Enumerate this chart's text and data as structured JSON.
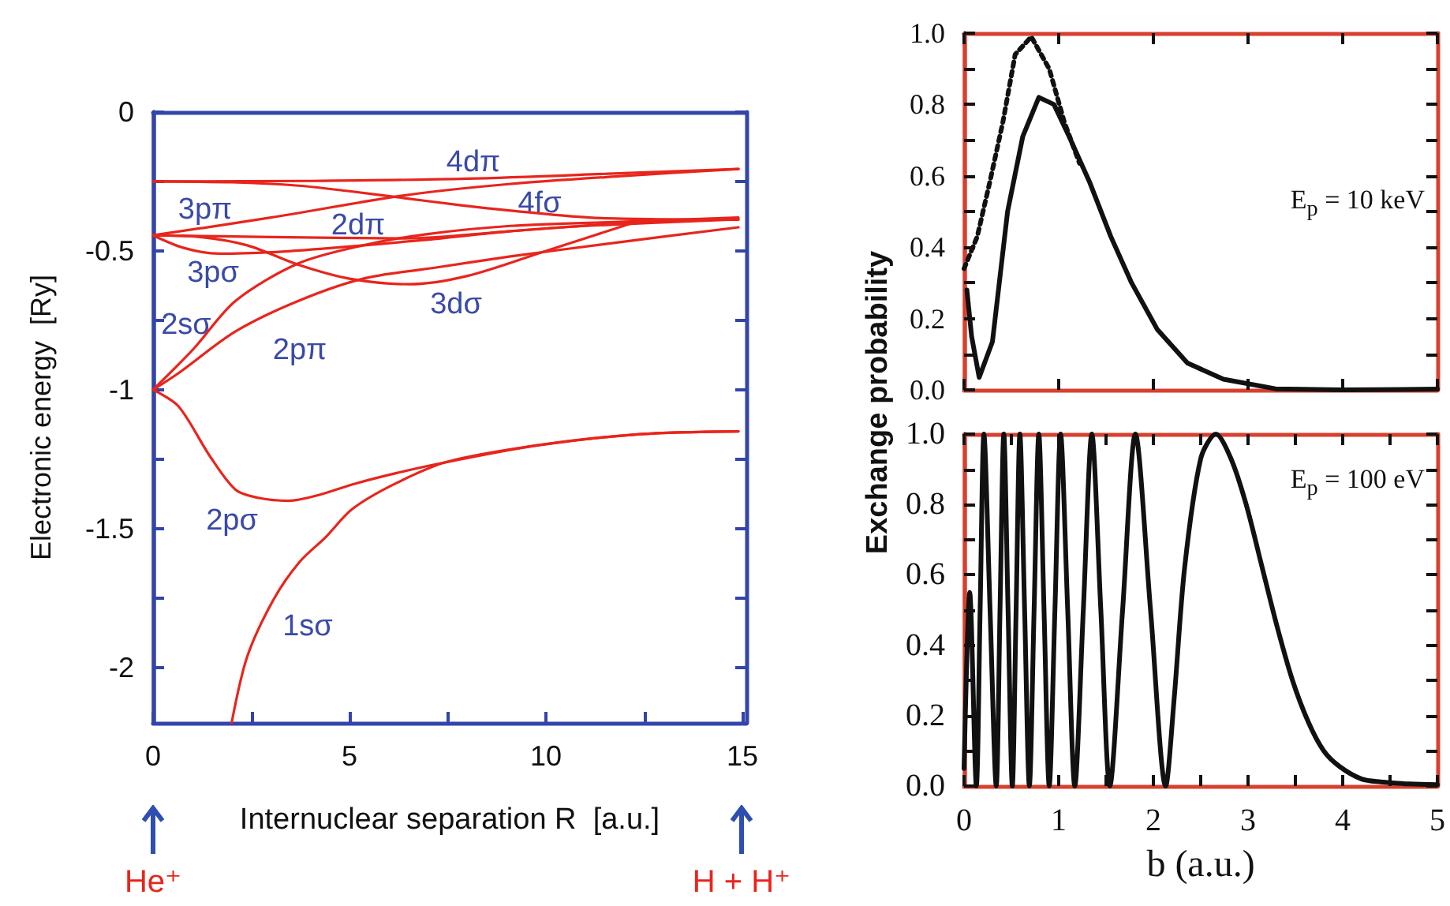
{
  "chart_data": [
    {
      "type": "line",
      "xlabel": "Internuclear separation R  [a.u.]",
      "ylabel": "Electronic energy  [Ry]",
      "xlim": [
        0,
        15.1
      ],
      "ylim": [
        -2.2,
        0
      ],
      "xticks": [
        0,
        {
          "value": 2.5,
          "label": null
        },
        5,
        {
          "value": 7.5,
          "label": null
        },
        10,
        {
          "value": 12.5,
          "label": null
        },
        15
      ],
      "yticks": [
        0,
        {
          "value": -0.25,
          "label": null
        },
        -0.5,
        {
          "value": -0.75,
          "label": null
        },
        -1,
        {
          "value": -1.25,
          "label": null
        },
        -1.5,
        {
          "value": -1.75,
          "label": null
        },
        -2
      ],
      "grid": false,
      "marker": "none",
      "series": [
        {
          "color": "#e8251c",
          "x": [
            2.0,
            2.4,
            3.07,
            3.73,
            4.4,
            5.07,
            6.14,
            7.48,
            9.8,
            12.4,
            14.9
          ],
          "values": [
            -2.2,
            -1.96,
            -1.755,
            -1.62,
            -1.53,
            -1.43,
            -1.34,
            -1.26,
            -1.2,
            -1.16,
            -1.15
          ]
        },
        {
          "color": "#e8251c",
          "x": [
            0,
            0.65,
            1.45,
            2.1,
            2.7,
            3.45,
            4.2,
            5.1,
            6.2,
            7.5,
            9.8,
            12.4,
            14.9
          ],
          "values": [
            -1,
            -1.06,
            -1.24,
            -1.36,
            -1.39,
            -1.4,
            -1.38,
            -1.34,
            -1.3,
            -1.26,
            -1.2,
            -1.16,
            -1.15
          ]
        },
        {
          "color": "#e8251c",
          "x": [
            0,
            0.5,
            1.05,
            2.1,
            3.7,
            5.35,
            6.95,
            9.1,
            12,
            14.9
          ],
          "values": [
            -1,
            -0.93,
            -0.85,
            -0.68,
            -0.545,
            -0.48,
            -0.44,
            -0.41,
            -0.395,
            -0.38
          ]
        },
        {
          "color": "#e8251c",
          "x": [
            0,
            0.65,
            2.1,
            3.7,
            5.35,
            7.2,
            9.1,
            11.8,
            14.9
          ],
          "values": [
            -1,
            -0.94,
            -0.79,
            -0.68,
            -0.6,
            -0.56,
            -0.52,
            -0.47,
            -0.415
          ]
        },
        {
          "color": "#e8251c",
          "x": [
            0,
            1.2,
            2.4,
            3.7,
            5,
            6.5,
            8,
            10,
            12.3
          ],
          "values": [
            -0.444,
            -0.45,
            -0.48,
            -0.55,
            -0.6,
            -0.62,
            -0.59,
            -0.5,
            -0.395
          ]
        },
        {
          "color": "#e8251c",
          "x": [
            0,
            0.8,
            1.7,
            3,
            4.5,
            6.95,
            9,
            11,
            14.9
          ],
          "values": [
            -0.444,
            -0.49,
            -0.51,
            -0.505,
            -0.49,
            -0.46,
            -0.43,
            -0.41,
            -0.386
          ]
        },
        {
          "color": "#e8251c",
          "x": [
            0.05,
            3,
            6.4,
            9,
            12,
            14.8
          ],
          "values": [
            -0.444,
            -0.45,
            -0.455,
            -0.43,
            -0.4,
            -0.384
          ]
        },
        {
          "color": "#e8251c",
          "x": [
            0,
            3,
            6.4,
            9,
            12,
            14.9
          ],
          "values": [
            -0.444,
            -0.38,
            -0.3,
            -0.26,
            -0.23,
            -0.205
          ]
        },
        {
          "color": "#e8251c",
          "x": [
            0,
            4,
            8,
            12,
            14.9
          ],
          "values": [
            -0.25,
            -0.248,
            -0.24,
            -0.22,
            -0.205
          ]
        },
        {
          "color": "#e8251c",
          "x": [
            0,
            2,
            3.7,
            5,
            6.4,
            7.8,
            9.1,
            11.1,
            13,
            14.9
          ],
          "values": [
            -0.25,
            -0.253,
            -0.265,
            -0.285,
            -0.31,
            -0.335,
            -0.355,
            -0.38,
            -0.386,
            -0.388
          ]
        }
      ],
      "annotations": [
        "4dπ",
        "3pπ",
        "2dπ",
        "4fσ",
        "3pσ",
        "3dσ",
        "2sσ",
        "2pπ",
        "2pσ",
        "1sσ",
        "He⁺",
        "H + H⁺"
      ]
    },
    {
      "type": "line",
      "ylabel": "Exchange probability",
      "xlim": [
        0,
        5
      ],
      "ylim": [
        0,
        1
      ],
      "xticks": [
        0,
        1,
        2,
        3,
        4,
        5
      ],
      "yticks": [
        {
          "value": 0,
          "label": "0.0"
        },
        {
          "value": 0.1,
          "label": null
        },
        {
          "value": 0.2,
          "label": "0.2"
        },
        {
          "value": 0.3,
          "label": null
        },
        {
          "value": 0.4,
          "label": "0.4"
        },
        {
          "value": 0.5,
          "label": null
        },
        {
          "value": 0.6,
          "label": "0.6"
        },
        {
          "value": 0.7,
          "label": null
        },
        {
          "value": 0.8,
          "label": "0.8"
        },
        {
          "value": 0.9,
          "label": null
        },
        {
          "value": 1,
          "label": "1.0"
        }
      ],
      "tick_labels": "y",
      "grid": false,
      "marker": "none",
      "series": [
        {
          "color": "#111111",
          "line_style": "solid",
          "x": [
            0.03,
            0.08,
            0.16,
            0.3,
            0.46,
            0.62,
            0.79,
            0.95,
            1.11,
            1.33,
            1.55,
            1.77,
            2.04,
            2.36,
            2.74,
            3.29,
            4,
            5
          ],
          "values": [
            0.28,
            0.15,
            0.035,
            0.135,
            0.5,
            0.71,
            0.82,
            0.8,
            0.71,
            0.58,
            0.43,
            0.3,
            0.17,
            0.075,
            0.03,
            0.003,
            0,
            0.002
          ]
        },
        {
          "color": "#111111",
          "line_style": "dotted",
          "x": [
            0,
            0.14,
            0.27,
            0.41,
            0.54,
            0.71,
            0.9,
            1.06,
            1.22
          ],
          "values": [
            0.34,
            0.43,
            0.58,
            0.75,
            0.94,
            0.99,
            0.9,
            0.75,
            0.635
          ]
        }
      ],
      "annotations": [
        "E$_{p}$ = 10 keV"
      ]
    },
    {
      "type": "line",
      "xlabel": "b (a.u.)",
      "xlim": [
        0,
        5
      ],
      "ylim": [
        0,
        1
      ],
      "xticks": [
        0,
        {
          "value": 0.5,
          "label": null
        },
        1,
        {
          "value": 1.5,
          "label": null
        },
        2,
        {
          "value": 2.5,
          "label": null
        },
        3,
        {
          "value": 3.5,
          "label": null
        },
        4,
        {
          "value": 4.5,
          "label": null
        },
        5
      ],
      "yticks": [
        {
          "value": 0,
          "label": "0.0"
        },
        {
          "value": 0.1,
          "label": null
        },
        {
          "value": 0.2,
          "label": "0.2"
        },
        {
          "value": 0.3,
          "label": null
        },
        {
          "value": 0.4,
          "label": "0.4"
        },
        {
          "value": 0.5,
          "label": null
        },
        {
          "value": 0.6,
          "label": "0.6"
        },
        {
          "value": 0.7,
          "label": null
        },
        {
          "value": 0.8,
          "label": "0.8"
        },
        {
          "value": 0.9,
          "label": null
        },
        {
          "value": 1,
          "label": "1.0"
        }
      ],
      "grid": false,
      "marker": "none",
      "series": [
        {
          "color": "#111111",
          "x": [
            0,
            0.06,
            0.13,
            0.17,
            0.21,
            0.275,
            0.34,
            0.38,
            0.42,
            0.465,
            0.51,
            0.55,
            0.59,
            0.64,
            0.69,
            0.74,
            0.79,
            0.845,
            0.9,
            0.96,
            1.02,
            1.095,
            1.17,
            1.26,
            1.35,
            1.445,
            1.54,
            1.675,
            1.81,
            1.97,
            2.13,
            2.22,
            2.33,
            2.5,
            2.66,
            2.82,
            2.98,
            3.15,
            3.31,
            3.47,
            3.64,
            3.8,
            3.97,
            4.2,
            4.4,
            4.7,
            5
          ],
          "values": [
            0.05,
            0.55,
            0,
            0.5,
            1,
            0.5,
            0,
            0.5,
            1,
            0.5,
            0,
            0.5,
            1,
            0.5,
            0,
            0.5,
            1,
            0.5,
            0,
            0.5,
            1,
            0.5,
            0,
            0.5,
            1,
            0.5,
            0,
            0.5,
            1,
            0.5,
            0,
            0.25,
            0.62,
            0.93,
            1,
            0.93,
            0.8,
            0.62,
            0.45,
            0.3,
            0.18,
            0.1,
            0.055,
            0.02,
            0.012,
            0.006,
            0.004
          ]
        }
      ],
      "annotations": [
        "E$_{p}$ = 100 eV"
      ]
    }
  ]
}
